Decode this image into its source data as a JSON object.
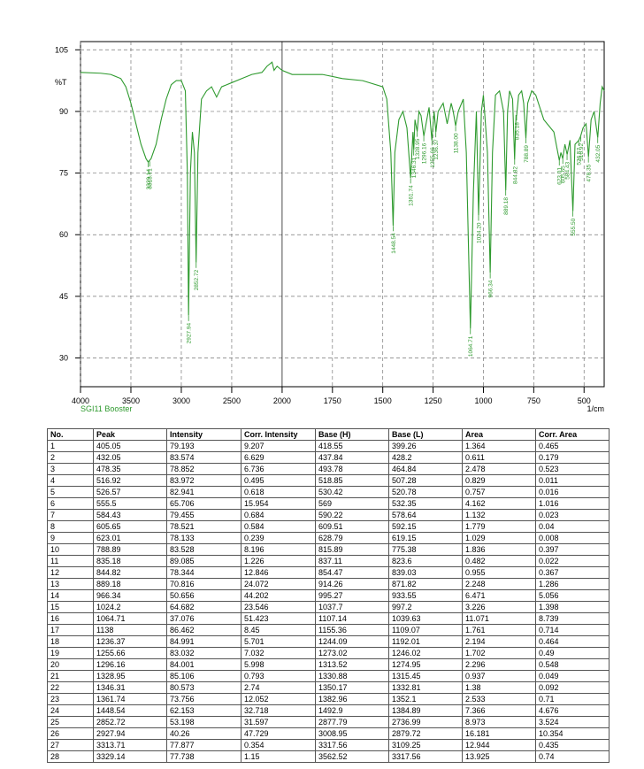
{
  "chart_data": {
    "type": "line",
    "y_label": "%T",
    "x_label": "1/cm",
    "xlim": [
      4000,
      400
    ],
    "x_scale_break": 2000,
    "xticks": [
      4000,
      3500,
      3000,
      2500,
      2000,
      1750,
      1500,
      1250,
      1000,
      750,
      500
    ],
    "ylim": [
      23,
      107
    ],
    "yticks": [
      105,
      90,
      75,
      60,
      45,
      30
    ],
    "grid": true,
    "series": [
      {
        "name": "SGI11 Booster",
        "color": "#2e9a2e",
        "x": [
          4000,
          3800,
          3700,
          3600,
          3550,
          3500,
          3450,
          3400,
          3350,
          3329,
          3300,
          3250,
          3200,
          3150,
          3100,
          3050,
          3000,
          2960,
          2940,
          2928,
          2910,
          2890,
          2870,
          2853,
          2835,
          2800,
          2750,
          2700,
          2650,
          2600,
          2500,
          2400,
          2300,
          2200,
          2150,
          2100,
          2080,
          2050,
          2000,
          1950,
          1900,
          1800,
          1700,
          1600,
          1500,
          1480,
          1460,
          1448.5,
          1440,
          1420,
          1400,
          1380,
          1361.7,
          1350,
          1346,
          1340,
          1329,
          1320,
          1310,
          1296,
          1285,
          1270,
          1256,
          1245,
          1236,
          1225,
          1200,
          1180,
          1160,
          1150,
          1138,
          1125,
          1100,
          1085,
          1064.7,
          1050,
          1035,
          1024,
          1010,
          1000,
          980,
          966.3,
          955,
          940,
          920,
          900,
          889,
          880,
          870,
          855,
          845,
          838,
          835,
          825,
          810,
          800,
          789,
          780,
          760,
          740,
          700,
          650,
          623,
          615,
          606,
          595,
          584,
          570,
          555.5,
          545,
          527,
          517,
          505,
          490,
          478,
          465,
          450,
          432,
          420,
          410,
          400
        ],
        "values": [
          99.5,
          99.3,
          99,
          98,
          96,
          92,
          87,
          82,
          78.5,
          77.7,
          78.5,
          82,
          88,
          93,
          96.5,
          97.5,
          97.5,
          95,
          75,
          40.3,
          75,
          85,
          80,
          53.2,
          80,
          93,
          95,
          96,
          93.5,
          96,
          97,
          98,
          99,
          99.5,
          101,
          102,
          100,
          101,
          100,
          99,
          99,
          99,
          98,
          97.5,
          96,
          93,
          80,
          62.2,
          80,
          88,
          90,
          86,
          73.8,
          85,
          80.6,
          88,
          85.1,
          90,
          89,
          84,
          87,
          91,
          83,
          90,
          85,
          90,
          92,
          87,
          92,
          90,
          86.5,
          90,
          93,
          80,
          37.1,
          70,
          90,
          64.7,
          90,
          94,
          80,
          50.7,
          80,
          94,
          95,
          90,
          70.8,
          90,
          95,
          93,
          78.3,
          89,
          89,
          94,
          95,
          92,
          83.5,
          92,
          95,
          94,
          88,
          85,
          78.1,
          80,
          78.5,
          82,
          79.5,
          83,
          65.7,
          82,
          82.9,
          84,
          86,
          87,
          78.9,
          88,
          90,
          83.6,
          92,
          96,
          95
        ]
      }
    ],
    "peaks": [
      {
        "value": 3329.14,
        "label": "3329.14",
        "intensity": 77.738
      },
      {
        "value": 3313.71,
        "label": "3313.71",
        "intensity": 77.877
      },
      {
        "value": 2927.94,
        "label": "2927.94",
        "intensity": 40.26
      },
      {
        "value": 2852.72,
        "label": "2852.72",
        "intensity": 53.198
      },
      {
        "value": 1448.54,
        "label": "1448.54",
        "intensity": 62.153
      },
      {
        "value": 1361.74,
        "label": "1361.74",
        "intensity": 73.756
      },
      {
        "value": 1346.31,
        "label": "1346.31",
        "intensity": 80.573
      },
      {
        "value": 1328.95,
        "label": "1328.95",
        "intensity": 85.106
      },
      {
        "value": 1296.16,
        "label": "1296.16",
        "intensity": 84.001
      },
      {
        "value": 1255.66,
        "label": "1255.66",
        "intensity": 83.032
      },
      {
        "value": 1236.37,
        "label": "1236.37",
        "intensity": 84.991
      },
      {
        "value": 1138,
        "label": "1138.00",
        "intensity": 86.462
      },
      {
        "value": 1064.71,
        "label": "1064.71",
        "intensity": 37.076
      },
      {
        "value": 1024.2,
        "label": "1024.20",
        "intensity": 64.682
      },
      {
        "value": 966.34,
        "label": "966.34",
        "intensity": 50.656
      },
      {
        "value": 889.18,
        "label": "889.18",
        "intensity": 70.816
      },
      {
        "value": 844.82,
        "label": "844.82",
        "intensity": 78.344
      },
      {
        "value": 835.18,
        "label": "835.18",
        "intensity": 89.085
      },
      {
        "value": 788.89,
        "label": "788.89",
        "intensity": 83.528
      },
      {
        "value": 623.01,
        "label": "623.01",
        "intensity": 78.133
      },
      {
        "value": 605.65,
        "label": "605.65",
        "intensity": 78.521
      },
      {
        "value": 584.43,
        "label": "584.43",
        "intensity": 79.455
      },
      {
        "value": 555.5,
        "label": "555.50",
        "intensity": 65.706
      },
      {
        "value": 526.57,
        "label": "526.57",
        "intensity": 82.941
      },
      {
        "value": 516.92,
        "label": "516.92",
        "intensity": 83.972
      },
      {
        "value": 478.35,
        "label": "478.35",
        "intensity": 78.852
      },
      {
        "value": 432.05,
        "label": "432.05",
        "intensity": 83.574
      }
    ]
  },
  "table": {
    "columns": [
      "No.",
      "Peak",
      "Intensity",
      "Corr. Intensity",
      "Base (H)",
      "Base (L)",
      "Area",
      "Corr. Area"
    ],
    "rows": [
      [
        "1",
        "405.05",
        "79.193",
        "9.207",
        "418.55",
        "399.26",
        "1.364",
        "0.465"
      ],
      [
        "2",
        "432.05",
        "83.574",
        "6.629",
        "437.84",
        "428.2",
        "0.611",
        "0.179"
      ],
      [
        "3",
        "478.35",
        "78.852",
        "6.736",
        "493.78",
        "464.84",
        "2.478",
        "0.523"
      ],
      [
        "4",
        "516.92",
        "83.972",
        "0.495",
        "518.85",
        "507.28",
        "0.829",
        "0.011"
      ],
      [
        "5",
        "526.57",
        "82.941",
        "0.618",
        "530.42",
        "520.78",
        "0.757",
        "0.016"
      ],
      [
        "6",
        "555.5",
        "65.706",
        "15.954",
        "569",
        "532.35",
        "4.162",
        "1.016"
      ],
      [
        "7",
        "584.43",
        "79.455",
        "0.684",
        "590.22",
        "578.64",
        "1.132",
        "0.023"
      ],
      [
        "8",
        "605.65",
        "78.521",
        "0.584",
        "609.51",
        "592.15",
        "1.779",
        "0.04"
      ],
      [
        "9",
        "623.01",
        "78.133",
        "0.239",
        "628.79",
        "619.15",
        "1.029",
        "0.008"
      ],
      [
        "10",
        "788.89",
        "83.528",
        "8.196",
        "815.89",
        "775.38",
        "1.836",
        "0.397"
      ],
      [
        "11",
        "835.18",
        "89.085",
        "1.226",
        "837.11",
        "823.6",
        "0.482",
        "0.022"
      ],
      [
        "12",
        "844.82",
        "78.344",
        "12.846",
        "854.47",
        "839.03",
        "0.955",
        "0.367"
      ],
      [
        "13",
        "889.18",
        "70.816",
        "24.072",
        "914.26",
        "871.82",
        "2.248",
        "1.286"
      ],
      [
        "14",
        "966.34",
        "50.656",
        "44.202",
        "995.27",
        "933.55",
        "6.471",
        "5.056"
      ],
      [
        "15",
        "1024.2",
        "64.682",
        "23.546",
        "1037.7",
        "997.2",
        "3.226",
        "1.398"
      ],
      [
        "16",
        "1064.71",
        "37.076",
        "51.423",
        "1107.14",
        "1039.63",
        "11.071",
        "8.739"
      ],
      [
        "17",
        "1138",
        "86.462",
        "8.45",
        "1155.36",
        "1109.07",
        "1.761",
        "0.714"
      ],
      [
        "18",
        "1236.37",
        "84.991",
        "5.701",
        "1244.09",
        "1192.01",
        "2.194",
        "0.464"
      ],
      [
        "19",
        "1255.66",
        "83.032",
        "7.032",
        "1273.02",
        "1246.02",
        "1.702",
        "0.49"
      ],
      [
        "20",
        "1296.16",
        "84.001",
        "5.998",
        "1313.52",
        "1274.95",
        "2.296",
        "0.548"
      ],
      [
        "21",
        "1328.95",
        "85.106",
        "0.793",
        "1330.88",
        "1315.45",
        "0.937",
        "0.049"
      ],
      [
        "22",
        "1346.31",
        "80.573",
        "2.74",
        "1350.17",
        "1332.81",
        "1.38",
        "0.092"
      ],
      [
        "23",
        "1361.74",
        "73.756",
        "12.052",
        "1382.96",
        "1352.1",
        "2.533",
        "0.71"
      ],
      [
        "24",
        "1448.54",
        "62.153",
        "32.718",
        "1492.9",
        "1384.89",
        "7.366",
        "4.676"
      ],
      [
        "25",
        "2852.72",
        "53.198",
        "31.597",
        "2877.79",
        "2736.99",
        "8.973",
        "3.524"
      ],
      [
        "26",
        "2927.94",
        "40.26",
        "47.729",
        "3008.95",
        "2879.72",
        "16.181",
        "10.354"
      ],
      [
        "27",
        "3313.71",
        "77.877",
        "0.354",
        "3317.56",
        "3109.25",
        "12.944",
        "0.435"
      ],
      [
        "28",
        "3329.14",
        "77.738",
        "1.15",
        "3562.52",
        "3317.56",
        "13.925",
        "0.74"
      ]
    ]
  }
}
